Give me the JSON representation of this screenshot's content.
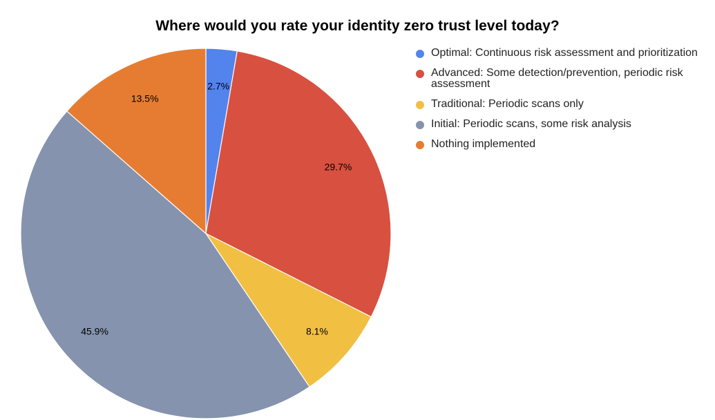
{
  "chart_data": {
    "type": "pie",
    "title": "Where would you rate your identity zero trust level today?",
    "legend_position": "right",
    "slices": [
      {
        "label": "Optimal: Continuous risk assessment and prioritization",
        "value": 2.7,
        "display": "2.7%",
        "color": "#5383EC"
      },
      {
        "label": "Advanced: Some detection/prevention, periodic risk assessment",
        "value": 29.7,
        "display": "29.7%",
        "color": "#D85040"
      },
      {
        "label": "Traditional: Periodic scans only",
        "value": 8.1,
        "display": "8.1%",
        "color": "#F1BF42"
      },
      {
        "label": "Initial: Periodic scans, some risk analysis",
        "value": 45.9,
        "display": "45.9%",
        "color": "#8593AE"
      },
      {
        "label": "Nothing implemented",
        "value": 13.5,
        "display": "13.5%",
        "color": "#E67C31"
      }
    ]
  }
}
